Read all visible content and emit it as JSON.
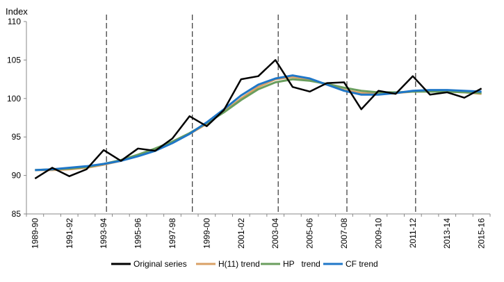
{
  "chart_data": {
    "type": "line",
    "ylabel": "Index",
    "ylim": [
      85,
      110
    ],
    "yticks": [
      85,
      90,
      95,
      100,
      105,
      110
    ],
    "grid": false,
    "legend_position": "bottom",
    "categories": [
      "1989-90",
      "1990-91",
      "1991-92",
      "1992-93",
      "1993-94",
      "1994-95",
      "1995-96",
      "1996-97",
      "1997-98",
      "1998-99",
      "1999-00",
      "2000-01",
      "2001-02",
      "2002-03",
      "2003-04",
      "2004-05",
      "2005-06",
      "2006-07",
      "2007-08",
      "2008-09",
      "2009-10",
      "2010-11",
      "2011-12",
      "2012-13",
      "2013-14",
      "2014-15",
      "2015-16"
    ],
    "vertical_dashed_lines_at": [
      "1993-94",
      "1998-99",
      "2003-04",
      "2007-08",
      "2011-12"
    ],
    "series": [
      {
        "name": "Original series",
        "color": "#000000",
        "values": [
          89.6,
          91.0,
          89.9,
          90.8,
          93.3,
          91.9,
          93.5,
          93.2,
          94.8,
          97.7,
          96.4,
          98.5,
          102.5,
          102.9,
          105.0,
          101.5,
          100.9,
          102.0,
          102.1,
          98.6,
          101.0,
          100.6,
          102.9,
          100.5,
          100.8,
          100.1,
          101.3
        ]
      },
      {
        "name": "H(11) trend",
        "color": "#D9A066",
        "values": [
          90.7,
          90.7,
          90.8,
          91.0,
          91.4,
          91.9,
          92.6,
          93.4,
          94.3,
          95.4,
          96.7,
          98.3,
          100.0,
          101.5,
          102.5,
          102.8,
          102.5,
          101.8,
          101.1,
          100.7,
          100.6,
          100.7,
          100.9,
          101.0,
          100.9,
          100.8,
          100.6
        ]
      },
      {
        "name": "HP   trend",
        "color": "#6A9E5E",
        "values": [
          90.7,
          90.8,
          90.9,
          91.1,
          91.5,
          92.0,
          92.7,
          93.5,
          94.4,
          95.5,
          96.8,
          98.2,
          99.8,
          101.2,
          102.1,
          102.5,
          102.3,
          101.9,
          101.4,
          101.0,
          100.8,
          100.8,
          100.9,
          100.9,
          100.9,
          100.8,
          100.7
        ]
      },
      {
        "name": "CF trend",
        "color": "#1F77C8",
        "values": [
          90.7,
          90.8,
          91.0,
          91.2,
          91.5,
          91.9,
          92.5,
          93.2,
          94.2,
          95.4,
          96.9,
          98.6,
          100.4,
          101.8,
          102.6,
          103.0,
          102.6,
          101.8,
          101.0,
          100.5,
          100.5,
          100.7,
          101.0,
          101.1,
          101.1,
          101.0,
          100.9
        ]
      }
    ]
  }
}
